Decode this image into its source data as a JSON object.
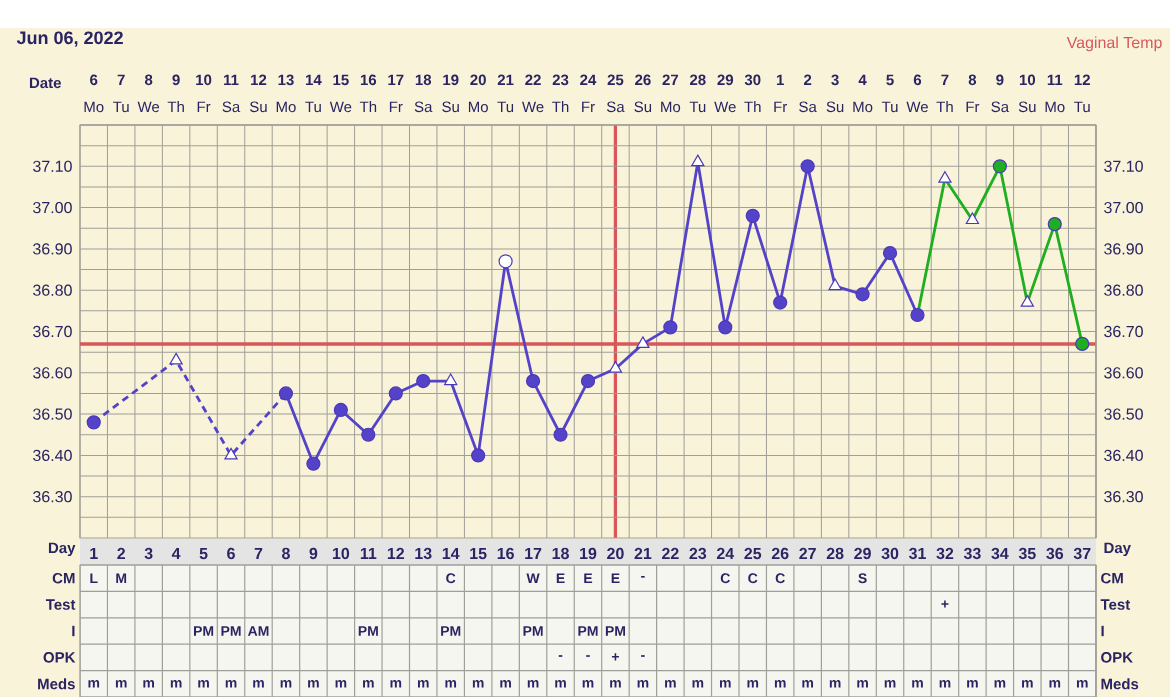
{
  "chart_data": [
    {
      "type": "line",
      "title": "Jun 06, 2022",
      "annotations": [
        "Vaginal Temp"
      ],
      "x2label": "Date",
      "categories": [
        null,
        null,
        null,
        null,
        null,
        null,
        null,
        null,
        null,
        null,
        null,
        null,
        null,
        null,
        null,
        null,
        null,
        null,
        null,
        null,
        null,
        null,
        null,
        null,
        null,
        null,
        null,
        null,
        null,
        null,
        null,
        null,
        null,
        null,
        null,
        null,
        null
      ],
      "x2lim": [
        "2022-06-05T12:00",
        "2022-07-12T12:00"
      ],
      "x2ticks": [
        {
          "value": "2022-06-06",
          "label": "6"
        },
        {
          "value": "2022-06-07",
          "label": "7"
        },
        {
          "value": "2022-06-08",
          "label": "8"
        },
        {
          "value": "2022-06-09",
          "label": "9"
        },
        {
          "value": "2022-06-10",
          "label": "10"
        },
        {
          "value": "2022-06-11",
          "label": "11"
        },
        {
          "value": "2022-06-12",
          "label": "12"
        },
        {
          "value": "2022-06-13",
          "label": "13"
        },
        {
          "value": "2022-06-14",
          "label": "14"
        },
        {
          "value": "2022-06-15",
          "label": "15"
        },
        {
          "value": "2022-06-16",
          "label": "16"
        },
        {
          "value": "2022-06-17",
          "label": "17"
        },
        {
          "value": "2022-06-18",
          "label": "18"
        },
        {
          "value": "2022-06-19",
          "label": "19"
        },
        {
          "value": "2022-06-20",
          "label": "20"
        },
        {
          "value": "2022-06-21",
          "label": "21"
        },
        {
          "value": "2022-06-22",
          "label": "22"
        },
        {
          "value": "2022-06-23",
          "label": "23"
        },
        {
          "value": "2022-06-24",
          "label": "24"
        },
        {
          "value": "2022-06-25",
          "label": "25"
        },
        {
          "value": "2022-06-26",
          "label": "26"
        },
        {
          "value": "2022-06-27",
          "label": "27"
        },
        {
          "value": "2022-06-28",
          "label": "28"
        },
        {
          "value": "2022-06-29",
          "label": "29"
        },
        {
          "value": "2022-06-30",
          "label": "30"
        },
        {
          "value": "2022-07-01",
          "label": "1"
        },
        {
          "value": "2022-07-02",
          "label": "2"
        },
        {
          "value": "2022-07-03",
          "label": "3"
        },
        {
          "value": "2022-07-04",
          "label": "4"
        },
        {
          "value": "2022-07-05",
          "label": "5"
        },
        {
          "value": "2022-07-06",
          "label": "6"
        },
        {
          "value": "2022-07-07",
          "label": "7"
        },
        {
          "value": "2022-07-08",
          "label": "8"
        },
        {
          "value": "2022-07-09",
          "label": "9"
        },
        {
          "value": "2022-07-10",
          "label": "10"
        },
        {
          "value": "2022-07-11",
          "label": "11"
        },
        {
          "value": "2022-07-12",
          "label": "12"
        }
      ],
      "ylim": [
        36.2,
        37.2
      ],
      "yticks": [
        {
          "value": 36.25,
          "label": null
        },
        {
          "value": 36.3,
          "label": "36.30"
        },
        {
          "value": 36.35,
          "label": null
        },
        {
          "value": 36.4,
          "label": "36.40"
        },
        {
          "value": 36.45,
          "label": null
        },
        {
          "value": 36.5,
          "label": "36.50"
        },
        {
          "value": 36.55,
          "label": null
        },
        {
          "value": 36.6,
          "label": "36.60"
        },
        {
          "value": 36.65,
          "label": null
        },
        {
          "value": 36.7,
          "label": "36.70"
        },
        {
          "value": 36.75,
          "label": null
        },
        {
          "value": 36.8,
          "label": "36.80"
        },
        {
          "value": 36.85,
          "label": null
        },
        {
          "value": 36.9,
          "label": "36.90"
        },
        {
          "value": 36.95,
          "label": null
        },
        {
          "value": 37.0,
          "label": "37.00"
        },
        {
          "value": 37.05,
          "label": null
        },
        {
          "value": 37.1,
          "label": "37.10"
        },
        {
          "value": 37.15,
          "label": null
        }
      ],
      "y2lim": [
        36.2,
        37.2
      ],
      "y2ticks": [
        {
          "value": 36.3,
          "label": "36.30"
        },
        {
          "value": 36.4,
          "label": "36.40"
        },
        {
          "value": 36.5,
          "label": "36.50"
        },
        {
          "value": 36.6,
          "label": "36.60"
        },
        {
          "value": 36.7,
          "label": "36.70"
        },
        {
          "value": 36.8,
          "label": "36.80"
        },
        {
          "value": 36.9,
          "label": "36.90"
        },
        {
          "value": 37.0,
          "label": "37.00"
        },
        {
          "value": 37.1,
          "label": "37.10"
        }
      ],
      "grid": true,
      "ref_lines": [
        {
          "axis": "y",
          "value": 36.67,
          "color": "#d9575a"
        },
        {
          "axis": "x2",
          "value": "2022-06-25",
          "color": "#d9575a"
        }
      ],
      "series": [
        {
          "type": "line",
          "color": "#5443c8",
          "line_style": "dashed",
          "marker": "none",
          "values": [
            36.48,
            null,
            null,
            36.63,
            null,
            36.4,
            null,
            36.55,
            null,
            null,
            null,
            null,
            null,
            null,
            null,
            null,
            null,
            null,
            null,
            null,
            null,
            null,
            null,
            null,
            null,
            null,
            null,
            null,
            null,
            null,
            null,
            null,
            null,
            null,
            null,
            null,
            null
          ]
        },
        {
          "type": "line",
          "color": "#5443c8",
          "line_style": "solid",
          "marker": "none",
          "values": [
            null,
            null,
            null,
            null,
            null,
            null,
            null,
            36.55,
            36.38,
            36.51,
            36.45,
            36.55,
            36.58,
            36.58,
            36.4,
            36.87,
            36.58,
            36.45,
            36.58,
            36.61,
            36.67,
            36.71,
            37.11,
            36.71,
            36.98,
            36.77,
            37.1,
            36.81,
            36.79,
            36.89,
            36.74,
            null,
            null,
            null,
            null,
            null,
            null
          ]
        },
        {
          "type": "line",
          "color": "#1fae1f",
          "line_style": "solid",
          "marker": "none",
          "values": [
            null,
            null,
            null,
            null,
            null,
            null,
            null,
            null,
            null,
            null,
            null,
            null,
            null,
            null,
            null,
            null,
            null,
            null,
            null,
            null,
            null,
            null,
            null,
            null,
            null,
            null,
            null,
            null,
            null,
            null,
            36.74,
            37.07,
            36.97,
            37.1,
            36.77,
            36.96,
            36.67
          ]
        },
        {
          "type": "scatter",
          "color": "#5443c8",
          "marker": "circle",
          "values": [
            36.48,
            null,
            null,
            null,
            null,
            null,
            null,
            36.55,
            36.38,
            36.51,
            36.45,
            36.55,
            36.58,
            null,
            36.4,
            null,
            36.58,
            36.45,
            36.58,
            null,
            null,
            36.71,
            null,
            36.71,
            36.98,
            36.77,
            37.1,
            null,
            36.79,
            36.89,
            36.74,
            null,
            null,
            null,
            null,
            null,
            null
          ]
        },
        {
          "type": "scatter",
          "color": "#ffffff",
          "marker": "triangle",
          "values": [
            null,
            null,
            null,
            36.63,
            null,
            36.4,
            null,
            null,
            null,
            null,
            null,
            null,
            null,
            36.58,
            null,
            null,
            null,
            null,
            null,
            36.61,
            36.67,
            null,
            37.11,
            null,
            null,
            null,
            null,
            36.81,
            null,
            null,
            null,
            37.07,
            36.97,
            null,
            36.77,
            null,
            null
          ]
        },
        {
          "type": "scatter",
          "color": "#ffffff",
          "marker": "circle",
          "values": [
            null,
            null,
            null,
            null,
            null,
            null,
            null,
            null,
            null,
            null,
            null,
            null,
            null,
            null,
            null,
            36.87,
            null,
            null,
            null,
            null,
            null,
            null,
            null,
            null,
            null,
            null,
            null,
            null,
            null,
            null,
            null,
            null,
            null,
            null,
            null,
            null,
            null
          ]
        },
        {
          "type": "scatter",
          "color": "#1fae1f",
          "marker": "circle",
          "values": [
            null,
            null,
            null,
            null,
            null,
            null,
            null,
            null,
            null,
            null,
            null,
            null,
            null,
            null,
            null,
            null,
            null,
            null,
            null,
            null,
            null,
            null,
            null,
            null,
            null,
            null,
            null,
            null,
            null,
            null,
            null,
            null,
            null,
            37.1,
            null,
            36.96,
            36.67
          ]
        }
      ]
    },
    {
      "type": "other",
      "categories": [
        "Mo",
        "Tu",
        "We",
        "Th",
        "Fr",
        "Sa",
        "Su",
        "Mo",
        "Tu",
        "We",
        "Th",
        "Fr",
        "Sa",
        "Su",
        "Mo",
        "Tu",
        "We",
        "Th",
        "Fr",
        "Sa",
        "Su",
        "Mo",
        "Tu",
        "We",
        "Th",
        "Fr",
        "Sa",
        "Su",
        "Mo",
        "Tu",
        "We",
        "Th",
        "Fr",
        "Sa",
        "Su",
        "Mo",
        "Tu"
      ]
    },
    {
      "type": "heatmap",
      "xlabel": "Day",
      "categories": [
        "1",
        "2",
        "3",
        "4",
        "5",
        "6",
        "7",
        "8",
        "9",
        "10",
        "11",
        "12",
        "13",
        "14",
        "15",
        "16",
        "17",
        "18",
        "19",
        "20",
        "21",
        "22",
        "23",
        "24",
        "25",
        "26",
        "27",
        "28",
        "29",
        "30",
        "31",
        "32",
        "33",
        "34",
        "35",
        "36",
        "37"
      ],
      "y_categories": [
        "CM",
        "Test",
        "I",
        "OPK",
        "Meds"
      ],
      "y2_categories": [
        "CM",
        "Test",
        "I",
        "OPK",
        "Meds"
      ],
      "cells": [
        [
          null,
          null,
          null,
          null,
          null,
          null,
          null,
          null,
          null,
          null,
          null,
          null,
          null,
          null,
          null,
          null,
          null,
          null,
          null,
          null,
          null,
          null,
          null,
          null,
          null,
          null,
          null,
          null,
          null,
          null,
          null,
          null,
          null,
          null,
          null,
          null,
          null
        ],
        [
          null,
          null,
          null,
          null,
          null,
          null,
          null,
          null,
          null,
          null,
          null,
          null,
          null,
          null,
          null,
          null,
          null,
          null,
          null,
          null,
          null,
          null,
          null,
          null,
          null,
          null,
          null,
          null,
          null,
          null,
          null,
          null,
          null,
          null,
          null,
          null,
          null
        ],
        [
          null,
          null,
          null,
          null,
          null,
          null,
          null,
          null,
          null,
          null,
          null,
          null,
          null,
          null,
          null,
          null,
          null,
          null,
          null,
          null,
          null,
          null,
          null,
          null,
          null,
          null,
          null,
          null,
          null,
          null,
          null,
          null,
          null,
          null,
          null,
          null,
          null
        ],
        [
          null,
          null,
          null,
          null,
          null,
          null,
          null,
          null,
          null,
          null,
          null,
          null,
          null,
          null,
          null,
          null,
          null,
          null,
          null,
          null,
          null,
          null,
          null,
          null,
          null,
          null,
          null,
          null,
          null,
          null,
          null,
          null,
          null,
          null,
          null,
          null,
          null
        ],
        [
          null,
          null,
          null,
          null,
          null,
          null,
          null,
          null,
          null,
          null,
          null,
          null,
          null,
          null,
          null,
          null,
          null,
          null,
          null,
          null,
          null,
          null,
          null,
          null,
          null,
          null,
          null,
          null,
          null,
          null,
          null,
          null,
          null,
          null,
          null,
          null,
          null
        ]
      ],
      "cell_labels": [
        [
          "L",
          "M",
          null,
          null,
          null,
          null,
          null,
          null,
          null,
          null,
          null,
          null,
          null,
          "C",
          null,
          null,
          "W",
          "E",
          "E",
          "E",
          "-",
          null,
          null,
          "C",
          "C",
          "C",
          null,
          null,
          "S",
          null,
          null,
          null,
          null,
          null,
          null,
          null,
          null
        ],
        [
          null,
          null,
          null,
          null,
          null,
          null,
          null,
          null,
          null,
          null,
          null,
          null,
          null,
          null,
          null,
          null,
          null,
          null,
          null,
          null,
          null,
          null,
          null,
          null,
          null,
          null,
          null,
          null,
          null,
          null,
          null,
          "+",
          null,
          null,
          null,
          null,
          null
        ],
        [
          null,
          null,
          null,
          null,
          "PM",
          "PM",
          "AM",
          null,
          null,
          null,
          "PM",
          null,
          null,
          "PM",
          null,
          null,
          "PM",
          null,
          "PM",
          "PM",
          null,
          null,
          null,
          null,
          null,
          null,
          null,
          null,
          null,
          null,
          null,
          null,
          null,
          null,
          null,
          null,
          null
        ],
        [
          null,
          null,
          null,
          null,
          null,
          null,
          null,
          null,
          null,
          null,
          null,
          null,
          null,
          null,
          null,
          null,
          null,
          "-",
          "-",
          "+",
          "-",
          null,
          null,
          null,
          null,
          null,
          null,
          null,
          null,
          null,
          null,
          null,
          null,
          null,
          null,
          null,
          null
        ],
        [
          "m",
          "m",
          "m",
          "m",
          "m",
          "m",
          "m",
          "m",
          "m",
          "m",
          "m",
          "m",
          "m",
          "m",
          "m",
          "m",
          "m",
          "m",
          "m",
          "m",
          "m",
          "m",
          "m",
          "m",
          "m",
          "m",
          "m",
          "m",
          "m",
          "m",
          "m",
          "m",
          "m",
          "m",
          "m",
          "m",
          "m"
        ]
      ]
    }
  ]
}
